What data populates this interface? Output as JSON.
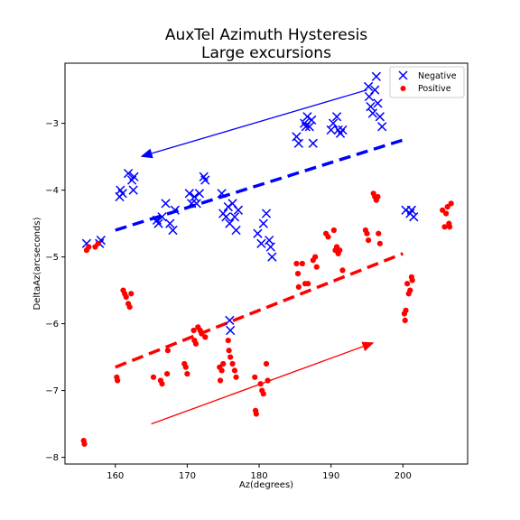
{
  "chart_data": {
    "type": "scatter",
    "title": [
      "AuxTel Azimuth Hysteresis",
      "Large excursions"
    ],
    "xlabel": "Az(degrees)",
    "ylabel": "DeltaAz(arcseconds)",
    "xlim": [
      153.0,
      209.0
    ],
    "ylim": [
      -8.1,
      -2.1
    ],
    "xticks": [
      {
        "value": 160,
        "label": "160"
      },
      {
        "value": 170,
        "label": "170"
      },
      {
        "value": 180,
        "label": "180"
      },
      {
        "value": 190,
        "label": "190"
      },
      {
        "value": 200,
        "label": "200"
      }
    ],
    "yticks": [
      {
        "value": -8,
        "label": "−8"
      },
      {
        "value": -7,
        "label": "−7"
      },
      {
        "value": -6,
        "label": "−6"
      },
      {
        "value": -5,
        "label": "−5"
      },
      {
        "value": -4,
        "label": "−4"
      },
      {
        "value": -3,
        "label": "−3"
      }
    ],
    "legend": {
      "position": "top-right",
      "entries": [
        "Negative",
        "Positive"
      ]
    },
    "series": [
      {
        "name": "Negative",
        "marker": "x",
        "color": "#0000ff",
        "points": [
          [
            156.0,
            -4.8
          ],
          [
            157.8,
            -4.8
          ],
          [
            158.0,
            -4.75
          ],
          [
            160.6,
            -4.1
          ],
          [
            160.7,
            -4.0
          ],
          [
            161.0,
            -4.05
          ],
          [
            161.8,
            -3.75
          ],
          [
            162.3,
            -3.85
          ],
          [
            162.5,
            -4.0
          ],
          [
            162.6,
            -3.8
          ],
          [
            165.8,
            -4.45
          ],
          [
            166.0,
            -4.5
          ],
          [
            166.5,
            -4.4
          ],
          [
            167.0,
            -4.2
          ],
          [
            167.6,
            -4.5
          ],
          [
            168.0,
            -4.6
          ],
          [
            168.3,
            -4.3
          ],
          [
            170.3,
            -4.05
          ],
          [
            170.6,
            -4.2
          ],
          [
            171.0,
            -4.1
          ],
          [
            171.3,
            -4.2
          ],
          [
            171.7,
            -4.05
          ],
          [
            172.3,
            -3.8
          ],
          [
            172.5,
            -3.85
          ],
          [
            174.8,
            -4.05
          ],
          [
            175.0,
            -4.35
          ],
          [
            175.4,
            -4.4
          ],
          [
            175.7,
            -4.25
          ],
          [
            175.9,
            -4.5
          ],
          [
            176.3,
            -4.2
          ],
          [
            176.6,
            -4.4
          ],
          [
            176.8,
            -4.6
          ],
          [
            177.1,
            -4.3
          ],
          [
            179.8,
            -4.65
          ],
          [
            180.3,
            -4.8
          ],
          [
            180.6,
            -4.5
          ],
          [
            181.0,
            -4.35
          ],
          [
            181.4,
            -4.75
          ],
          [
            181.6,
            -4.85
          ],
          [
            181.8,
            -5.0
          ],
          [
            185.2,
            -3.2
          ],
          [
            185.5,
            -3.3
          ],
          [
            186.3,
            -3.0
          ],
          [
            186.5,
            -3.05
          ],
          [
            186.7,
            -2.9
          ],
          [
            187.0,
            -3.05
          ],
          [
            187.3,
            -2.95
          ],
          [
            187.5,
            -3.3
          ],
          [
            190.0,
            -3.1
          ],
          [
            190.3,
            -3.0
          ],
          [
            190.8,
            -2.9
          ],
          [
            191.0,
            -3.1
          ],
          [
            191.3,
            -3.15
          ],
          [
            191.6,
            -3.1
          ],
          [
            195.2,
            -2.45
          ],
          [
            195.3,
            -2.6
          ],
          [
            195.5,
            -2.75
          ],
          [
            195.8,
            -2.85
          ],
          [
            196.1,
            -2.5
          ],
          [
            196.3,
            -2.3
          ],
          [
            196.5,
            -2.7
          ],
          [
            196.8,
            -2.9
          ],
          [
            197.1,
            -3.05
          ],
          [
            200.4,
            -4.3
          ],
          [
            201.0,
            -4.35
          ],
          [
            201.2,
            -4.3
          ],
          [
            201.5,
            -4.4
          ],
          [
            175.9,
            -5.95
          ],
          [
            176.0,
            -6.1
          ]
        ]
      },
      {
        "name": "Positive",
        "marker": "o",
        "color": "#ff0000",
        "points": [
          [
            155.6,
            -7.75
          ],
          [
            155.7,
            -7.8
          ],
          [
            156.0,
            -4.9
          ],
          [
            156.3,
            -4.85
          ],
          [
            157.2,
            -4.85
          ],
          [
            157.6,
            -4.8
          ],
          [
            160.2,
            -6.8
          ],
          [
            160.3,
            -6.85
          ],
          [
            161.1,
            -5.5
          ],
          [
            161.3,
            -5.55
          ],
          [
            161.5,
            -5.6
          ],
          [
            161.8,
            -5.7
          ],
          [
            162.0,
            -5.75
          ],
          [
            162.2,
            -5.55
          ],
          [
            165.3,
            -6.8
          ],
          [
            166.3,
            -6.85
          ],
          [
            166.5,
            -6.9
          ],
          [
            167.2,
            -6.75
          ],
          [
            167.3,
            -6.4
          ],
          [
            169.6,
            -6.6
          ],
          [
            169.8,
            -6.65
          ],
          [
            170.0,
            -6.75
          ],
          [
            170.9,
            -6.1
          ],
          [
            171.0,
            -6.25
          ],
          [
            171.2,
            -6.3
          ],
          [
            171.5,
            -6.05
          ],
          [
            171.8,
            -6.1
          ],
          [
            172.0,
            -6.15
          ],
          [
            172.5,
            -6.2
          ],
          [
            174.5,
            -6.65
          ],
          [
            174.6,
            -6.85
          ],
          [
            174.8,
            -6.7
          ],
          [
            175.0,
            -6.6
          ],
          [
            175.7,
            -6.25
          ],
          [
            175.8,
            -6.4
          ],
          [
            176.0,
            -6.5
          ],
          [
            176.3,
            -6.6
          ],
          [
            176.6,
            -6.7
          ],
          [
            176.8,
            -6.8
          ],
          [
            179.4,
            -6.8
          ],
          [
            179.5,
            -7.3
          ],
          [
            179.6,
            -7.35
          ],
          [
            180.2,
            -6.9
          ],
          [
            180.4,
            -7.0
          ],
          [
            180.6,
            -7.05
          ],
          [
            181.0,
            -6.6
          ],
          [
            181.2,
            -6.85
          ],
          [
            185.2,
            -5.1
          ],
          [
            185.4,
            -5.25
          ],
          [
            185.5,
            -5.45
          ],
          [
            186.0,
            -5.1
          ],
          [
            186.4,
            -5.4
          ],
          [
            186.8,
            -5.4
          ],
          [
            187.5,
            -5.05
          ],
          [
            187.8,
            -5.0
          ],
          [
            188.0,
            -5.15
          ],
          [
            189.3,
            -4.65
          ],
          [
            189.6,
            -4.7
          ],
          [
            190.4,
            -4.6
          ],
          [
            190.6,
            -4.9
          ],
          [
            190.8,
            -4.85
          ],
          [
            191.0,
            -4.95
          ],
          [
            191.2,
            -4.9
          ],
          [
            191.6,
            -5.2
          ],
          [
            194.8,
            -4.6
          ],
          [
            195.0,
            -4.65
          ],
          [
            195.2,
            -4.75
          ],
          [
            195.9,
            -4.05
          ],
          [
            196.1,
            -4.1
          ],
          [
            196.3,
            -4.15
          ],
          [
            196.5,
            -4.1
          ],
          [
            196.6,
            -4.65
          ],
          [
            196.8,
            -4.8
          ],
          [
            200.2,
            -5.85
          ],
          [
            200.3,
            -5.95
          ],
          [
            200.4,
            -5.8
          ],
          [
            200.6,
            -5.4
          ],
          [
            200.8,
            -5.55
          ],
          [
            201.0,
            -5.5
          ],
          [
            201.2,
            -5.3
          ],
          [
            201.3,
            -5.35
          ],
          [
            205.5,
            -4.3
          ],
          [
            205.8,
            -4.55
          ],
          [
            206.0,
            -4.35
          ],
          [
            206.2,
            -4.25
          ],
          [
            206.4,
            -4.5
          ],
          [
            206.5,
            -4.55
          ],
          [
            206.7,
            -4.2
          ]
        ]
      }
    ],
    "fit_lines": [
      {
        "name": "Negative trend",
        "color": "#0000ff",
        "x": [
          160.0,
          200.0
        ],
        "y": [
          -4.6,
          -3.25
        ]
      },
      {
        "name": "Positive trend",
        "color": "#ff0000",
        "x": [
          160.0,
          200.0
        ],
        "y": [
          -6.65,
          -4.95
        ]
      }
    ],
    "arrows": [
      {
        "name": "Negative direction",
        "color": "#0000ff",
        "from": [
          195.0,
          -2.5
        ],
        "to": [
          163.5,
          -3.5
        ]
      },
      {
        "name": "Positive direction",
        "color": "#ff0000",
        "from": [
          165.0,
          -7.5
        ],
        "to": [
          196.0,
          -6.28
        ]
      }
    ]
  }
}
